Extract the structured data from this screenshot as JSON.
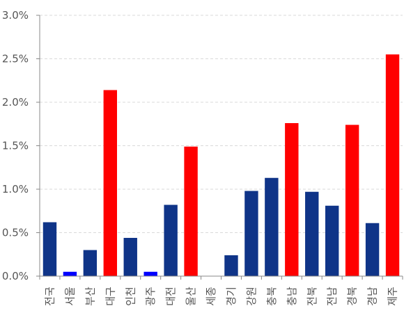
{
  "chart_data": {
    "type": "bar",
    "title": "",
    "xlabel": "",
    "ylabel": "",
    "ylim": [
      0,
      3.0
    ],
    "yticks": [
      "0.0%",
      "0.5%",
      "1.0%",
      "1.5%",
      "2.0%",
      "2.5%",
      "3.0%"
    ],
    "grid": true,
    "legend": "none",
    "categories": [
      "전국",
      "서울",
      "부산",
      "대구",
      "인천",
      "광주",
      "대전",
      "울산",
      "세종",
      "경기",
      "강원",
      "충북",
      "충남",
      "전북",
      "전남",
      "경북",
      "경남",
      "제주"
    ],
    "values": [
      0.62,
      0.05,
      0.3,
      2.14,
      0.44,
      0.05,
      0.82,
      1.49,
      0.0,
      0.24,
      0.98,
      1.13,
      1.76,
      0.97,
      0.81,
      1.74,
      0.61,
      2.55
    ],
    "bar_colors": [
      "#0f3488",
      "#0000ff",
      "#0f3488",
      "#ff0000",
      "#0f3488",
      "#0000ff",
      "#0f3488",
      "#ff0000",
      "#0f3488",
      "#0f3488",
      "#0f3488",
      "#0f3488",
      "#ff0000",
      "#0f3488",
      "#0f3488",
      "#ff0000",
      "#0f3488",
      "#ff0000"
    ]
  }
}
